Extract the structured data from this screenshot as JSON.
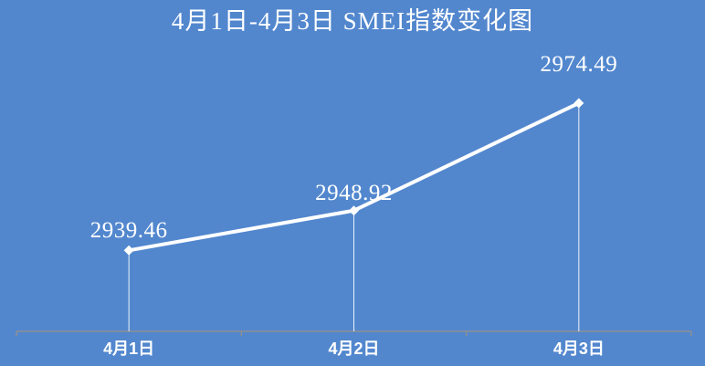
{
  "chart_data": {
    "type": "line",
    "title": "4月1日-4月3日 SMEI指数变化图",
    "categories": [
      "4月1日",
      "4月2日",
      "4月3日"
    ],
    "values": [
      2939.46,
      2948.92,
      2974.49
    ],
    "data_labels": [
      "2939.46",
      "2948.92",
      "2974.49"
    ],
    "xlabel": "",
    "ylabel": "",
    "ylim": [
      2920,
      2985
    ],
    "grid": false,
    "legend": "none",
    "marker": "diamond",
    "droplines": true,
    "colors": {
      "background": "#5287ce",
      "series_line": "#ffffff",
      "marker_fill": "#ffffff",
      "axis_line": "#909090",
      "dropline": "#ffffff",
      "title_text": "#ffffff",
      "label_text": "#ffffff"
    }
  }
}
